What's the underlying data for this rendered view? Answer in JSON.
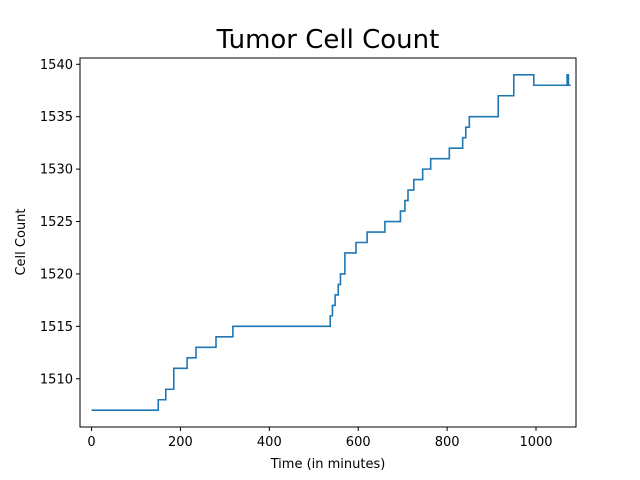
{
  "chart_data": {
    "type": "line",
    "title": "Tumor Cell Count",
    "xlabel": "Time (in minutes)",
    "ylabel": "Cell Count",
    "xlim": [
      -26,
      1090
    ],
    "ylim": [
      1505.4,
      1540.6
    ],
    "xticks": [
      0,
      200,
      400,
      600,
      800,
      1000
    ],
    "yticks": [
      1510,
      1515,
      1520,
      1525,
      1530,
      1535,
      1540
    ],
    "grid": false,
    "series": [
      {
        "color": "#1f77b4",
        "step": "post",
        "x": [
          0,
          150,
          167,
          185,
          215,
          235,
          280,
          318,
          537,
          542,
          548,
          555,
          560,
          570,
          575,
          595,
          620,
          660,
          695,
          705,
          712,
          725,
          745,
          763,
          805,
          835,
          842,
          850,
          915,
          950,
          995,
          1070,
          1073,
          1078
        ],
        "y": [
          1507,
          1508,
          1509,
          1511,
          1512,
          1513,
          1514,
          1515,
          1516,
          1517,
          1518,
          1519,
          1520,
          1522,
          1522,
          1523,
          1524,
          1525,
          1526,
          1527,
          1528,
          1529,
          1530,
          1531,
          1532,
          1533,
          1534,
          1535,
          1537,
          1539,
          1538,
          1539,
          1538,
          1538
        ]
      }
    ]
  }
}
